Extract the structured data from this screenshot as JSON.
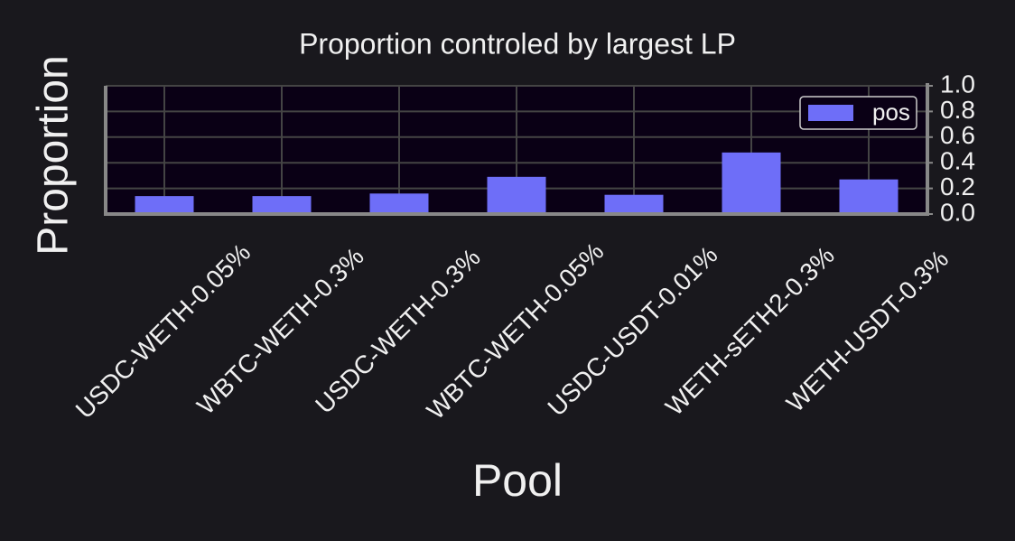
{
  "chart_data": {
    "type": "bar",
    "title": "Proportion controled by largest LP",
    "x_label": "Pool",
    "y_label": "Proportion",
    "categories": [
      "USDC-WETH-0.05%",
      "WBTC-WETH-0.3%",
      "USDC-WETH-0.3%",
      "WBTC-WETH-0.05%",
      "USDC-USDT-0.01%",
      "WETH-sETH2-0.3%",
      "WETH-USDT-0.3%"
    ],
    "series": [
      {
        "name": "pos",
        "color": "#6e6ef8",
        "values": [
          0.14,
          0.14,
          0.16,
          0.29,
          0.15,
          0.48,
          0.27
        ]
      }
    ],
    "ylim": [
      0,
      1.0
    ],
    "yticks": [
      {
        "value": 0,
        "label": "0.0"
      },
      0.2,
      0.4,
      0.6,
      0.8,
      {
        "value": 1,
        "label": "1.0"
      }
    ],
    "y_axis_side": "right",
    "grid": true,
    "legend": "upper right"
  }
}
